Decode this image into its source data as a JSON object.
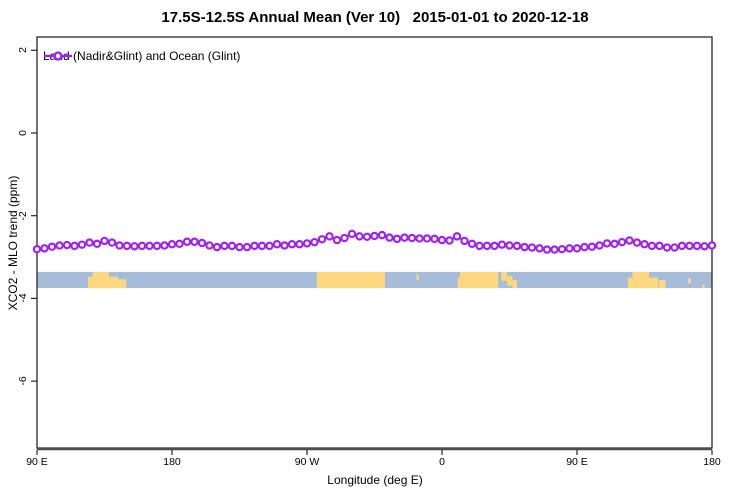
{
  "title": "17.5S-12.5S Annual Mean (Ver 10)   2015-01-01 to 2020-12-18",
  "legend": {
    "label": "Land (Nadir&Glint) and Ocean (Glint)"
  },
  "axes": {
    "x_label": "Longitude (deg E)",
    "y_label": "XCO2 - MLO trend (ppm)"
  },
  "colors": {
    "series": "#A020F0",
    "marker_fill": "#FFFFFF",
    "ocean_band": "#A6BCD9",
    "land_band": "#FDD87E",
    "axis_line": "#262626",
    "baseline": "#4D4D4D",
    "text": "#000000"
  },
  "chart_data": {
    "type": "line",
    "title": "17.5S-12.5S Annual Mean (Ver 10)   2015-01-01 to 2020-12-18",
    "xlabel": "Longitude (deg E)",
    "ylabel": "XCO2 - MLO trend (ppm)",
    "x_axis_note": "longitude wraps eastward from 90E through 180, 90W, 0, 90E to 180",
    "x_start_deg": 90,
    "x_step_deg": 5,
    "x_end_deg": 540,
    "ylim": [
      -7.6,
      2.3
    ],
    "y_ticks": [
      2,
      0,
      -2,
      -4,
      -6
    ],
    "x_ticks": [
      {
        "deg": 90,
        "label": "90 E"
      },
      {
        "deg": 180,
        "label": "180"
      },
      {
        "deg": 270,
        "label": "90 W"
      },
      {
        "deg": 360,
        "label": "0"
      },
      {
        "deg": 450,
        "label": "90 E"
      },
      {
        "deg": 540,
        "label": "180"
      }
    ],
    "grid": false,
    "legend_position": "top-left inside plot",
    "series": [
      {
        "name": "Land (Nadir&Glint) and Ocean (Glint)",
        "marker": "open-circle",
        "color": "#A020F0",
        "values": [
          -2.81,
          -2.79,
          -2.75,
          -2.72,
          -2.71,
          -2.73,
          -2.7,
          -2.65,
          -2.68,
          -2.61,
          -2.65,
          -2.72,
          -2.73,
          -2.74,
          -2.73,
          -2.73,
          -2.73,
          -2.72,
          -2.69,
          -2.68,
          -2.63,
          -2.63,
          -2.66,
          -2.72,
          -2.76,
          -2.73,
          -2.73,
          -2.76,
          -2.76,
          -2.73,
          -2.73,
          -2.73,
          -2.69,
          -2.72,
          -2.69,
          -2.69,
          -2.67,
          -2.64,
          -2.57,
          -2.5,
          -2.59,
          -2.54,
          -2.44,
          -2.5,
          -2.51,
          -2.49,
          -2.47,
          -2.53,
          -2.56,
          -2.53,
          -2.54,
          -2.55,
          -2.55,
          -2.56,
          -2.59,
          -2.6,
          -2.5,
          -2.61,
          -2.68,
          -2.73,
          -2.73,
          -2.73,
          -2.7,
          -2.72,
          -2.73,
          -2.76,
          -2.77,
          -2.79,
          -2.82,
          -2.82,
          -2.81,
          -2.79,
          -2.79,
          -2.76,
          -2.75,
          -2.72,
          -2.67,
          -2.68,
          -2.64,
          -2.6,
          -2.65,
          -2.69,
          -2.73,
          -2.73,
          -2.77,
          -2.77,
          -2.73,
          -2.73,
          -2.73,
          -2.74,
          -2.72
        ]
      }
    ],
    "map_band": {
      "description": "ocean/land strip for latitude 17.5S-12.5S",
      "y_top_value": -3.36,
      "y_bottom_value": -3.75,
      "ocean_color": "#A6BCD9",
      "land_color": "#FDD87E",
      "land_patches_deg": [
        {
          "s": 124,
          "e": 144,
          "t": 0.3,
          "h": 0.7
        },
        {
          "s": 127,
          "e": 138,
          "t": 0.0,
          "h": 1.0
        },
        {
          "s": 144,
          "e": 149.5,
          "t": 0.45,
          "h": 0.55
        },
        {
          "s": 276.5,
          "e": 322,
          "t": 0.0,
          "h": 1.0
        },
        {
          "s": 343,
          "e": 344.5,
          "t": 0.15,
          "h": 0.35
        },
        {
          "s": 370.5,
          "e": 372,
          "t": 0.35,
          "h": 0.65
        },
        {
          "s": 372,
          "e": 397.5,
          "t": 0.0,
          "h": 1.0
        },
        {
          "s": 399.5,
          "e": 403.5,
          "t": 0.0,
          "h": 0.55
        },
        {
          "s": 403.5,
          "e": 407,
          "t": 0.25,
          "h": 0.6
        },
        {
          "s": 407,
          "e": 410,
          "t": 0.5,
          "h": 0.5
        },
        {
          "s": 484,
          "e": 504,
          "t": 0.35,
          "h": 0.65
        },
        {
          "s": 487,
          "e": 498,
          "t": 0.0,
          "h": 1.0
        },
        {
          "s": 504.5,
          "e": 509,
          "t": 0.5,
          "h": 0.5
        },
        {
          "s": 524,
          "e": 526,
          "t": 0.4,
          "h": 0.3
        },
        {
          "s": 533.5,
          "e": 535,
          "t": 0.8,
          "h": 0.2
        }
      ]
    }
  }
}
